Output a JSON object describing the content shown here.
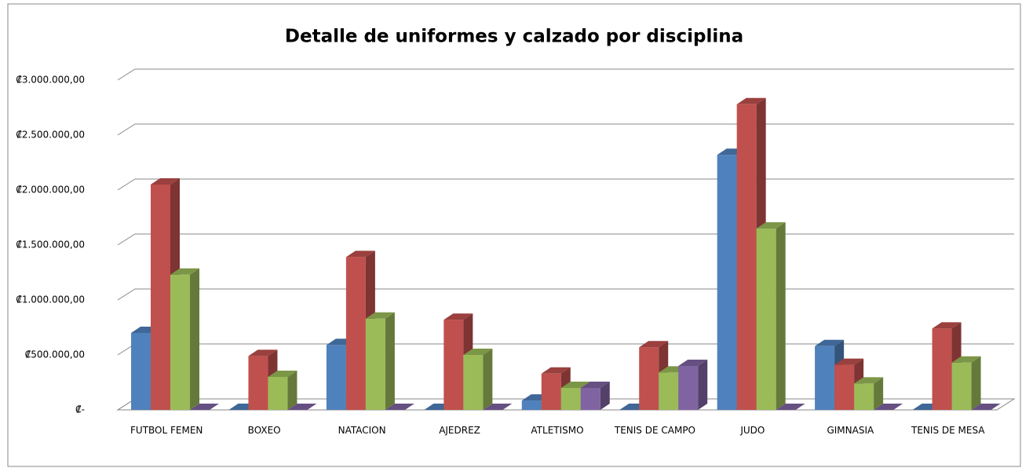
{
  "chart_data": {
    "type": "bar3d",
    "title": "Detalle de uniformes y calzado por disciplina",
    "categories": [
      "FUTBOL FEMEN",
      "BOXEO",
      "NATACION",
      "AJEDREZ",
      "ATLETISMO",
      "TENIS DE CAMPO",
      "JUDO",
      "GIMNASIA",
      "TENIS DE MESA"
    ],
    "series": [
      {
        "color": "#4f81bd",
        "values": [
          700000,
          0,
          590000,
          0,
          85000,
          0,
          2320000,
          580000,
          0
        ]
      },
      {
        "color": "#c0504d",
        "values": [
          2050000,
          490000,
          1390000,
          820000,
          330000,
          570000,
          2780000,
          410000,
          740000
        ]
      },
      {
        "color": "#9bbb59",
        "values": [
          1230000,
          300000,
          830000,
          500000,
          200000,
          340000,
          1650000,
          240000,
          430000
        ]
      },
      {
        "color": "#8064a2",
        "values": [
          0,
          0,
          0,
          0,
          200000,
          400000,
          0,
          0,
          0
        ]
      }
    ],
    "ylim": [
      0,
      3000000
    ],
    "yticks": [
      {
        "value": 0,
        "label": "₡-"
      },
      {
        "value": 500000,
        "label": "₡500.000,00"
      },
      {
        "value": 1000000,
        "label": "₡1.000.000,00"
      },
      {
        "value": 1500000,
        "label": "₡1.500.000,00"
      },
      {
        "value": 2000000,
        "label": "₡2.000.000,00"
      },
      {
        "value": 2500000,
        "label": "₡2.500.000,00"
      },
      {
        "value": 3000000,
        "label": "₡3.000.000,00"
      }
    ],
    "grid": true
  }
}
